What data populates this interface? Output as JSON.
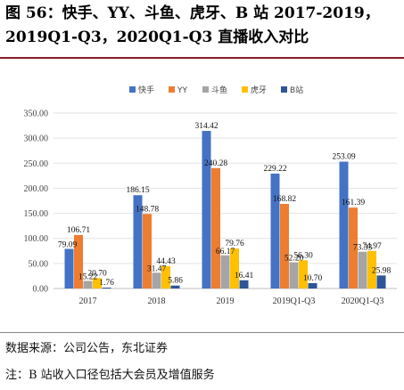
{
  "title": "图 56：快手、YY、斗鱼、虎牙、B 站 2017-2019，2019Q1-Q3，2020Q1-Q3 直播收入对比",
  "source": "数据来源：公司公告，东北证券",
  "note": "注：B 站收入口径包括大会员及增值服务",
  "chart_data": {
    "type": "bar",
    "categories": [
      "2017",
      "2018",
      "2019",
      "2019Q1-Q3",
      "2020Q1-Q3"
    ],
    "ylim": [
      0,
      350
    ],
    "yticks": [
      "0.00",
      "50.00",
      "100.00",
      "150.00",
      "200.00",
      "250.00",
      "300.00",
      "350.00"
    ],
    "ytick_values": [
      0,
      50,
      100,
      150,
      200,
      250,
      300,
      350
    ],
    "grid": true,
    "legend_position": "top",
    "series": [
      {
        "name": "快手",
        "color": "#4472C4",
        "values": [
          79.09,
          186.15,
          314.42,
          229.22,
          253.09
        ]
      },
      {
        "name": "YY",
        "color": "#ED7D31",
        "values": [
          106.71,
          148.78,
          240.28,
          168.82,
          161.39
        ]
      },
      {
        "name": "斗鱼",
        "color": "#A5A5A5",
        "values": [
          15.22,
          31.47,
          66.17,
          52.2,
          73.33
        ]
      },
      {
        "name": "虎牙",
        "color": "#FFC000",
        "values": [
          20.7,
          44.43,
          79.76,
          56.3,
          74.97
        ]
      },
      {
        "name": "B站",
        "color": "#2E5597",
        "values": [
          1.76,
          5.86,
          16.41,
          10.7,
          25.98
        ]
      }
    ],
    "data_labels": [
      [
        "79.09",
        "186.15",
        "314.42",
        "229.22",
        "253.09"
      ],
      [
        "106.71",
        "148.78",
        "240.28",
        "168.82",
        "161.39"
      ],
      [
        "15.22",
        "31.47",
        "66.17",
        "52.20",
        "73.33"
      ],
      [
        "20.70",
        "44.43",
        "79.76",
        "56.30",
        "74.97"
      ],
      [
        "1.76",
        "5.86",
        "16.41",
        "10.70",
        "25.98"
      ]
    ]
  }
}
